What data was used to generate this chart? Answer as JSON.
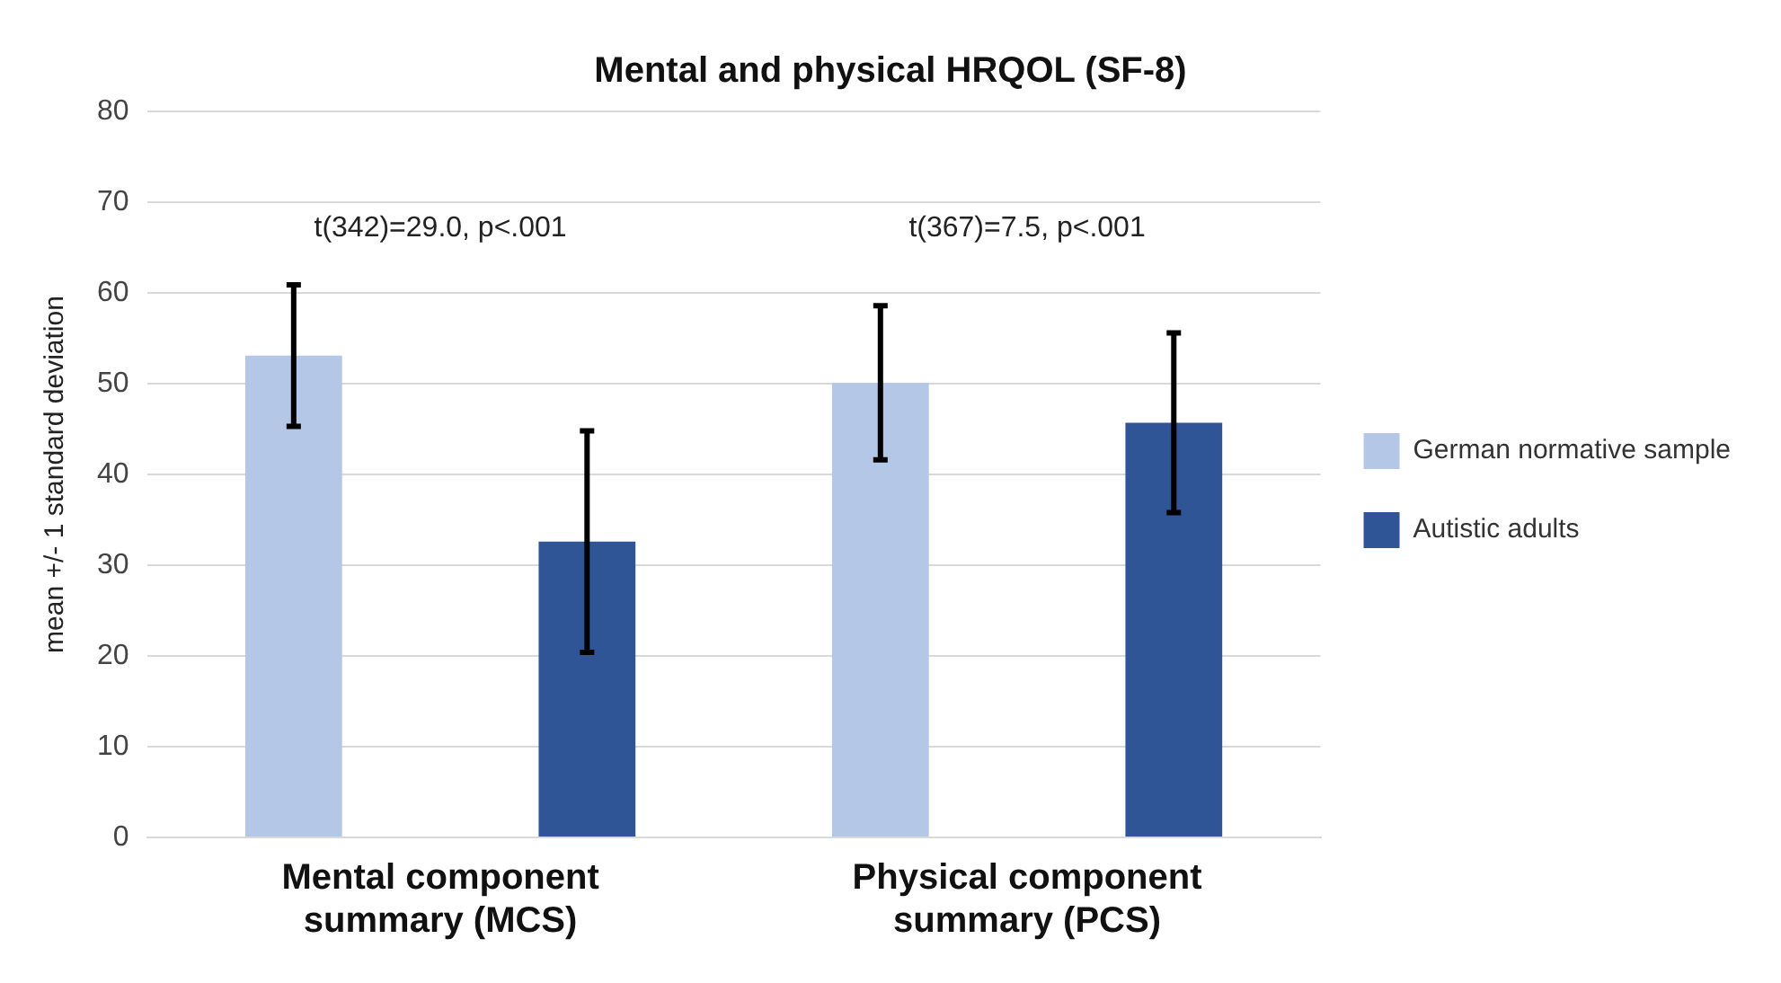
{
  "chart_data": {
    "type": "bar",
    "title": "Mental and physical HRQOL (SF-8)",
    "ylabel": "mean +/- 1 standard deviation",
    "categories": [
      "Mental component summary (MCS)",
      "Physical component summary (PCS)"
    ],
    "series": [
      {
        "name": "German normative sample",
        "color": "#b4c7e7",
        "values": [
          53.1,
          50.1
        ],
        "errors": [
          7.8,
          8.5
        ]
      },
      {
        "name": "Autistic adults",
        "color": "#2f5597",
        "values": [
          32.6,
          45.7
        ],
        "errors": [
          12.2,
          9.9
        ]
      }
    ],
    "ylim": [
      0,
      80
    ],
    "yticks": [
      0,
      10,
      20,
      30,
      40,
      50,
      60,
      70,
      80
    ],
    "grid": "y",
    "legend": "right",
    "annotations": [
      "t(342)=29.0, p<.001",
      "t(367)=7.5, p<.001"
    ]
  }
}
